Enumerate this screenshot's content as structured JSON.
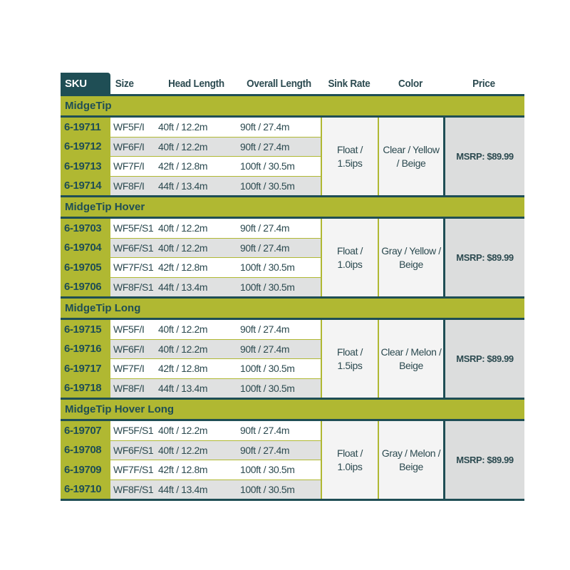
{
  "headers": {
    "sku": "SKU",
    "size": "Size",
    "head": "Head Length",
    "overall": "Overall Length",
    "sink": "Sink Rate",
    "color": "Color",
    "price": "Price"
  },
  "groups": [
    {
      "title": "MidgeTip",
      "sink": "Float / 1.5ips",
      "color": "Clear / Yellow / Beige",
      "price": "MSRP: $89.99",
      "rows": [
        [
          "6-19711",
          "WF5F/I",
          "40ft / 12.2m",
          "90ft / 27.4m"
        ],
        [
          "6-19712",
          "WF6F/I",
          "40ft / 12.2m",
          "90ft / 27.4m"
        ],
        [
          "6-19713",
          "WF7F/I",
          "42ft / 12.8m",
          "100ft / 30.5m"
        ],
        [
          "6-19714",
          "WF8F/I",
          "44ft / 13.4m",
          "100ft / 30.5m"
        ]
      ]
    },
    {
      "title": "MidgeTip Hover",
      "sink": "Float / 1.0ips",
      "color": "Gray / Yellow / Beige",
      "price": "MSRP: $89.99",
      "rows": [
        [
          "6-19703",
          "WF5F/S1",
          "40ft / 12.2m",
          "90ft / 27.4m"
        ],
        [
          "6-19704",
          "WF6F/S1",
          "40ft / 12.2m",
          "90ft / 27.4m"
        ],
        [
          "6-19705",
          "WF7F/S1",
          "42ft / 12.8m",
          "100ft / 30.5m"
        ],
        [
          "6-19706",
          "WF8F/S1",
          "44ft / 13.4m",
          "100ft / 30.5m"
        ]
      ]
    },
    {
      "title": "MidgeTip Long",
      "sink": "Float / 1.5ips",
      "color": "Clear / Melon / Beige",
      "price": "MSRP: $89.99",
      "rows": [
        [
          "6-19715",
          "WF5F/I",
          "40ft / 12.2m",
          "90ft / 27.4m"
        ],
        [
          "6-19716",
          "WF6F/I",
          "40ft / 12.2m",
          "90ft / 27.4m"
        ],
        [
          "6-19717",
          "WF7F/I",
          "42ft / 12.8m",
          "100ft / 30.5m"
        ],
        [
          "6-19718",
          "WF8F/I",
          "44ft / 13.4m",
          "100ft / 30.5m"
        ]
      ]
    },
    {
      "title": "MidgeTip Hover Long",
      "sink": "Float / 1.0ips",
      "color": "Gray / Melon / Beige",
      "price": "MSRP: $89.99",
      "rows": [
        [
          "6-19707",
          "WF5F/S1",
          "40ft / 12.2m",
          "90ft / 27.4m"
        ],
        [
          "6-19708",
          "WF6F/S1",
          "40ft / 12.2m",
          "90ft / 27.4m"
        ],
        [
          "6-19709",
          "WF7F/S1",
          "42ft / 12.8m",
          "100ft / 30.5m"
        ],
        [
          "6-19710",
          "WF8F/S1",
          "44ft / 13.4m",
          "100ft / 30.5m"
        ]
      ]
    }
  ],
  "colors": {
    "dark_teal": "#1f4e55",
    "olive": "#b0b832",
    "row_alt": "#e0e1e1",
    "price_bg": "#dcdddd"
  }
}
